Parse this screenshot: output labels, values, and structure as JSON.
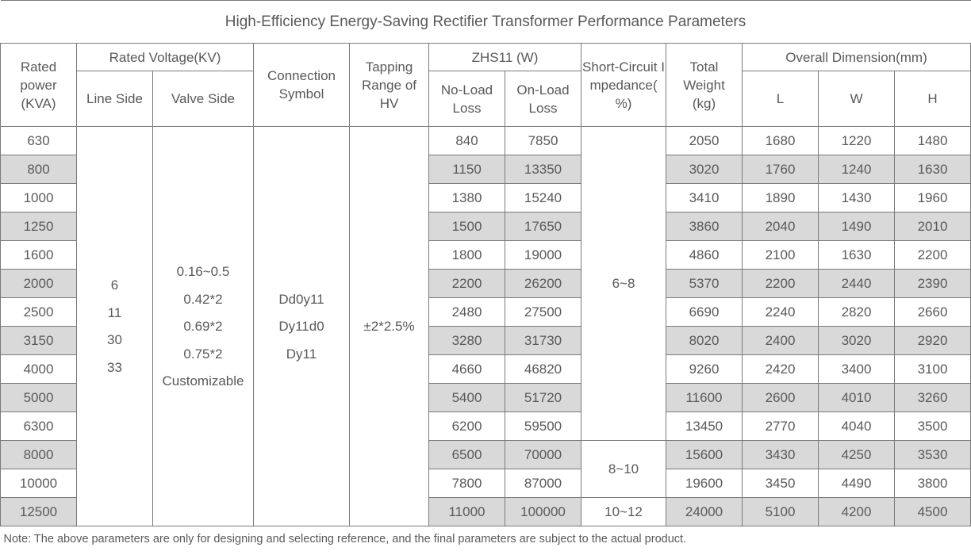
{
  "title": "High-Efficiency Energy-Saving Rectifier Transformer Performance Parameters",
  "headers": {
    "rated_power": "Rated power (KVA)",
    "rated_voltage": "Rated Voltage(KV)",
    "line_side": "Line Side",
    "valve_side": "Valve Side",
    "connection_symbol": "Connection Symbol",
    "tapping_range": "Tapping Range of HV",
    "zhs11": "ZHS11 (W)",
    "no_load_loss": "No-Load Loss",
    "on_load_loss": "On-Load Loss",
    "impedance": "Short-Circuit Impedance( %)",
    "total_weight": "Total Weight (kg)",
    "overall_dimension": "Overall Dimension(mm)",
    "dim_l": "L",
    "dim_w": "W",
    "dim_h": "H"
  },
  "line_side_values": [
    "6",
    "11",
    "30",
    "33"
  ],
  "valve_side_values": [
    "0.16~0.5",
    "0.42*2",
    "0.69*2",
    "0.75*2",
    "Customizable"
  ],
  "connection_values": [
    "Dd0y11",
    "Dy11d0",
    "Dy11"
  ],
  "tapping_value": "±2*2.5%",
  "impedance_values": [
    "6~8",
    "8~10",
    "10~12"
  ],
  "rows": [
    {
      "power": "630",
      "no_load": "840",
      "on_load": "7850",
      "weight": "2050",
      "l": "1680",
      "w": "1220",
      "h": "1480"
    },
    {
      "power": "800",
      "no_load": "1150",
      "on_load": "13350",
      "weight": "3020",
      "l": "1760",
      "w": "1240",
      "h": "1630"
    },
    {
      "power": "1000",
      "no_load": "1380",
      "on_load": "15240",
      "weight": "3410",
      "l": "1890",
      "w": "1430",
      "h": "1960"
    },
    {
      "power": "1250",
      "no_load": "1500",
      "on_load": "17650",
      "weight": "3860",
      "l": "2040",
      "w": "1490",
      "h": "2010"
    },
    {
      "power": "1600",
      "no_load": "1800",
      "on_load": "19000",
      "weight": "4860",
      "l": "2100",
      "w": "1630",
      "h": "2200"
    },
    {
      "power": "2000",
      "no_load": "2200",
      "on_load": "26200",
      "weight": "5370",
      "l": "2200",
      "w": "2440",
      "h": "2390"
    },
    {
      "power": "2500",
      "no_load": "2480",
      "on_load": "27500",
      "weight": "6690",
      "l": "2240",
      "w": "2820",
      "h": "2660"
    },
    {
      "power": "3150",
      "no_load": "3280",
      "on_load": "31730",
      "weight": "8020",
      "l": "2400",
      "w": "3020",
      "h": "2920"
    },
    {
      "power": "4000",
      "no_load": "4660",
      "on_load": "46820",
      "weight": "9260",
      "l": "2420",
      "w": "3400",
      "h": "3100"
    },
    {
      "power": "5000",
      "no_load": "5400",
      "on_load": "51720",
      "weight": "11600",
      "l": "2600",
      "w": "4010",
      "h": "3260"
    },
    {
      "power": "6300",
      "no_load": "6200",
      "on_load": "59500",
      "weight": "13450",
      "l": "2770",
      "w": "4040",
      "h": "3500"
    },
    {
      "power": "8000",
      "no_load": "6500",
      "on_load": "70000",
      "weight": "15600",
      "l": "3430",
      "w": "4250",
      "h": "3530"
    },
    {
      "power": "10000",
      "no_load": "7800",
      "on_load": "87000",
      "weight": "19600",
      "l": "3450",
      "w": "4490",
      "h": "3800"
    },
    {
      "power": "12500",
      "no_load": "11000",
      "on_load": "100000",
      "weight": "24000",
      "l": "5100",
      "w": "4200",
      "h": "4500"
    }
  ],
  "colors": {
    "stripe": "#d9d9d9",
    "text": "#595959",
    "border": "#7a7a7a"
  },
  "note": "Note: The above parameters are only for designing and selecting  reference, and the final parameters are subject to the actual product."
}
